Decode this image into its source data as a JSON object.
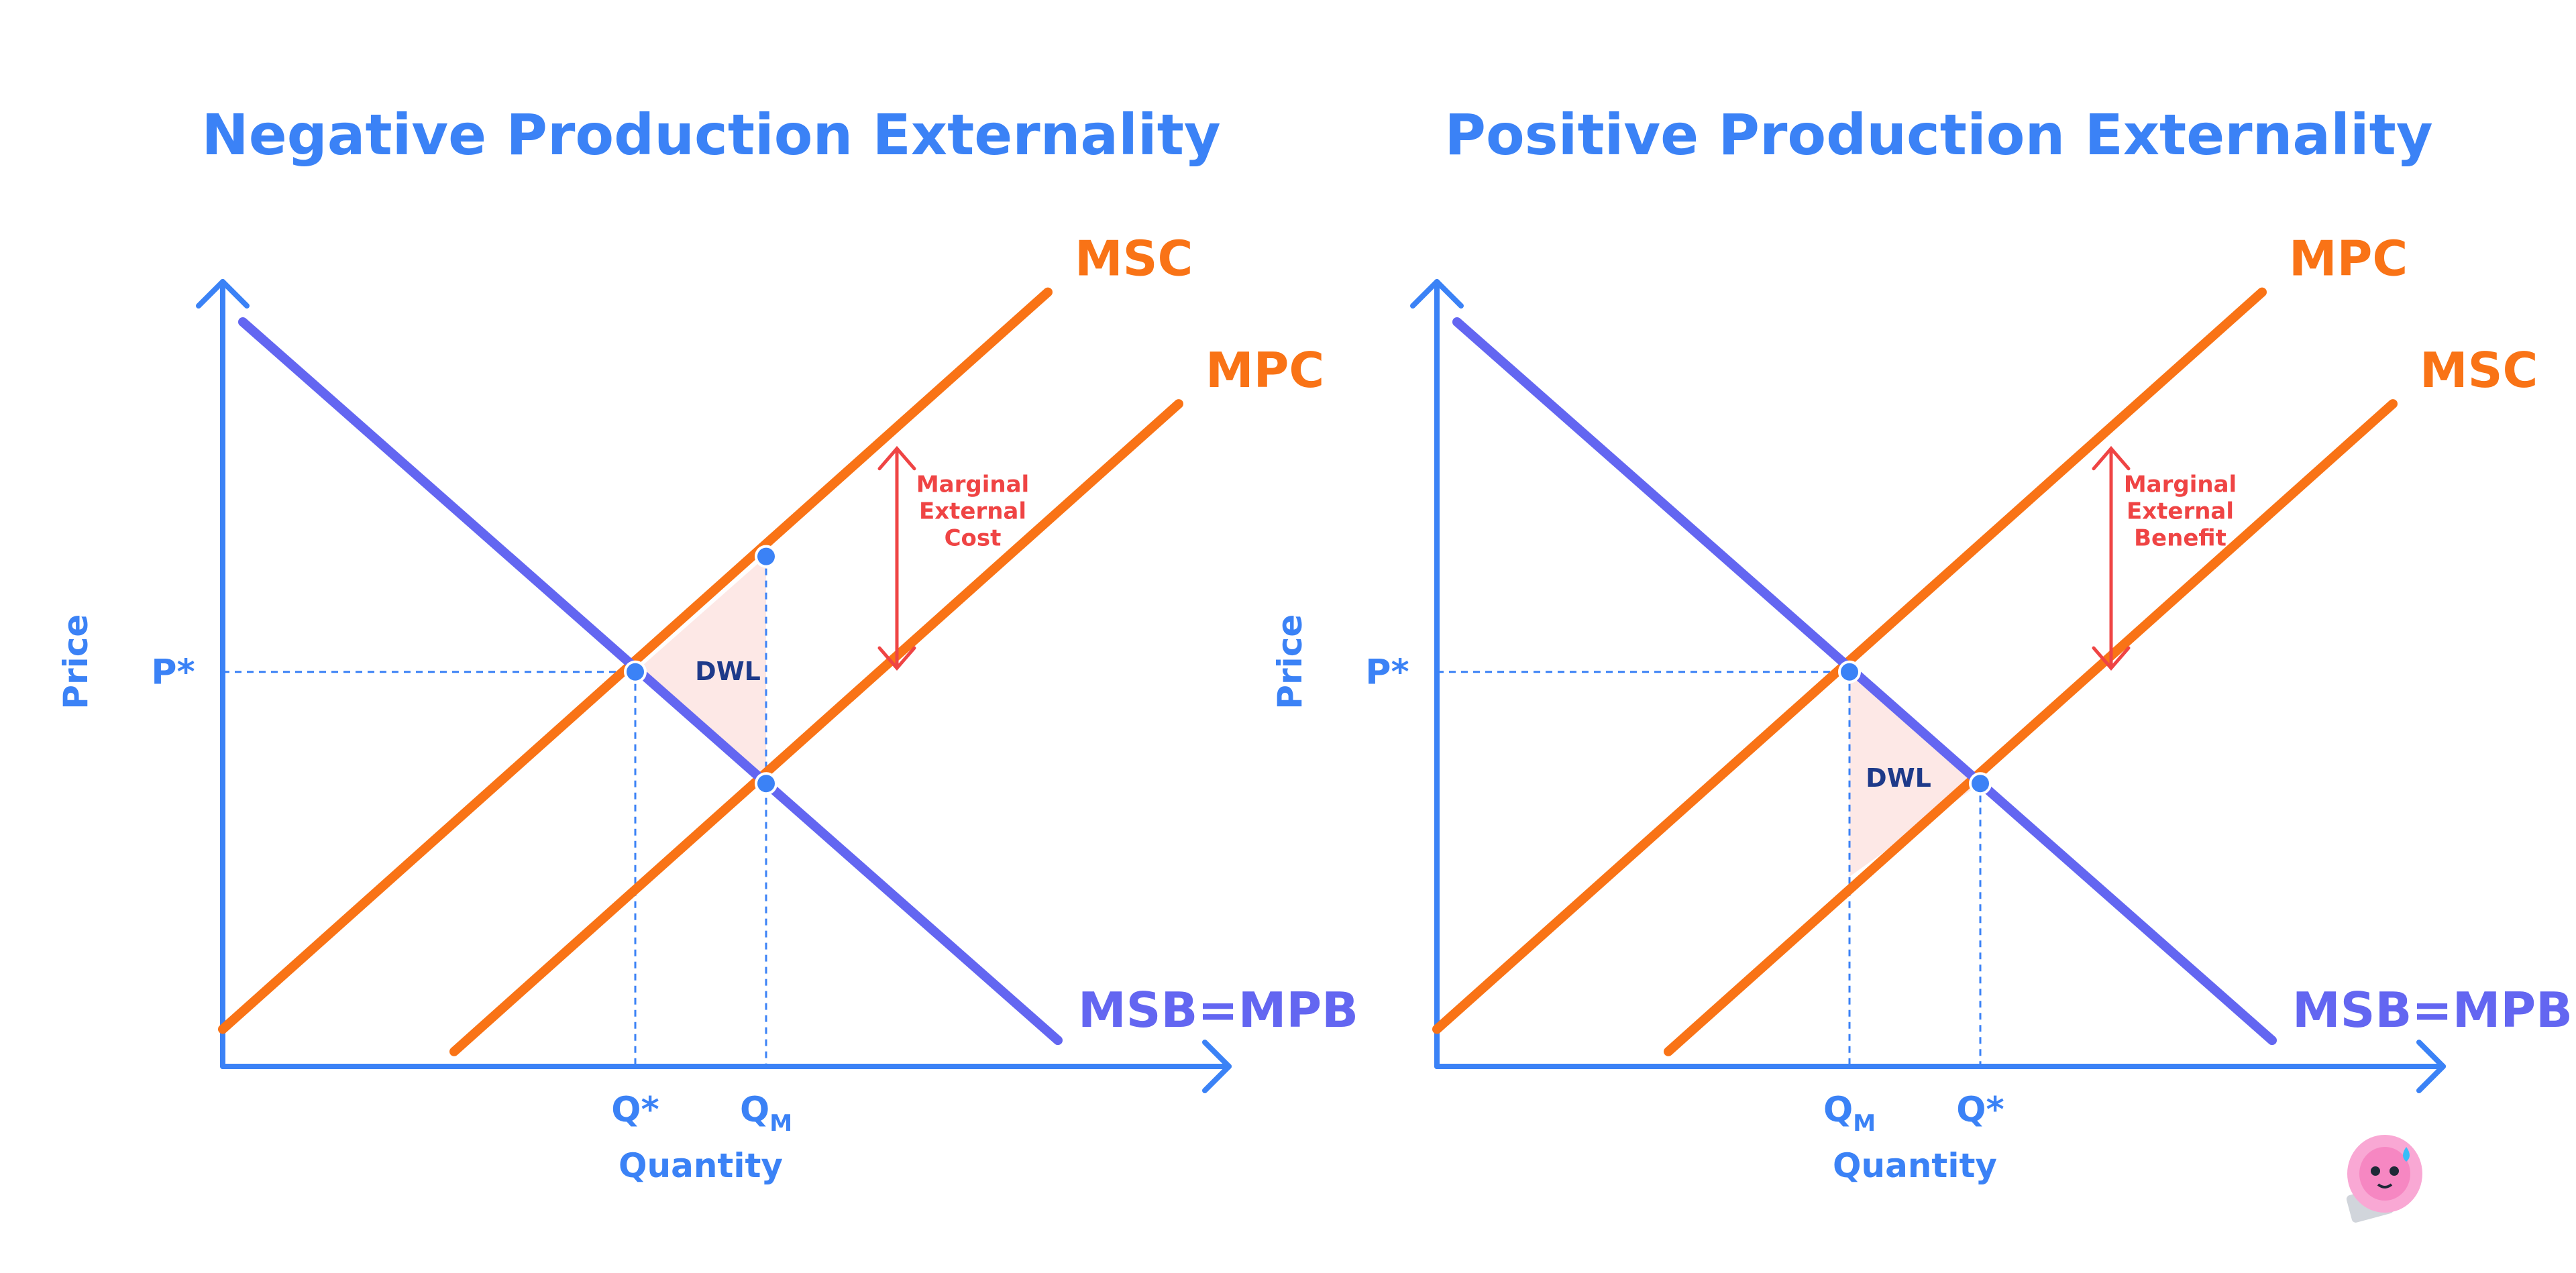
{
  "colors": {
    "axis": "#3b82f6",
    "title": "#3b82f6",
    "supply": "#f97316",
    "demand": "#6366f1",
    "arrow": "#ef4444",
    "dwl_fill": "#fde8e6",
    "dwl_text": "#1e3a8a",
    "guide": "#3b82f6",
    "point": "#3b82f6"
  },
  "mascot_icon": "pink-blob-mascot-icon",
  "chart_data": [
    {
      "type": "line",
      "title": "Negative Production Externality",
      "xlabel": "Quantity",
      "ylabel": "Price",
      "xlim": [
        0,
        10
      ],
      "ylim": [
        0,
        10
      ],
      "grid": false,
      "series": [
        {
          "name": "MSC",
          "color": "supply",
          "points": [
            [
              0,
              0.5
            ],
            [
              8.2,
              10.4
            ]
          ]
        },
        {
          "name": "MPC",
          "color": "supply",
          "points": [
            [
              2.3,
              0.2
            ],
            [
              9.5,
              8.9
            ]
          ]
        },
        {
          "name": "MSB=MPB",
          "color": "demand",
          "points": [
            [
              0.2,
              10.0
            ],
            [
              8.3,
              0.35
            ]
          ]
        }
      ],
      "points": [
        {
          "name": "efficient",
          "x": 4.1,
          "y": 5.3
        },
        {
          "name": "market",
          "x": 5.4,
          "y": 3.8
        },
        {
          "name": "msc-at-qm",
          "x": 5.4,
          "y": 6.85
        }
      ],
      "dwl": {
        "label": "DWL",
        "vertices": [
          [
            4.1,
            5.3
          ],
          [
            5.4,
            6.85
          ],
          [
            5.4,
            3.8
          ]
        ]
      },
      "guides": {
        "p_star": {
          "label": "P*",
          "y": 5.3,
          "x_to": 4.1
        },
        "q_ticks": [
          {
            "label": "Q*",
            "x": 4.1,
            "y_to": 5.3
          },
          {
            "label": "Q",
            "sub": "M",
            "x": 5.4,
            "y_to": 6.85
          }
        ]
      },
      "arrow": {
        "label_lines": [
          "Marginal",
          "External",
          "Cost"
        ],
        "x": 6.7,
        "y_from": 8.3,
        "y_to": 5.35
      }
    },
    {
      "type": "line",
      "title": "Positive Production Externality",
      "xlabel": "Quantity",
      "ylabel": "Price",
      "xlim": [
        0,
        10
      ],
      "ylim": [
        0,
        10
      ],
      "grid": false,
      "series": [
        {
          "name": "MPC",
          "color": "supply",
          "points": [
            [
              0,
              0.5
            ],
            [
              8.2,
              10.4
            ]
          ]
        },
        {
          "name": "MSC",
          "color": "supply",
          "points": [
            [
              2.3,
              0.2
            ],
            [
              9.5,
              8.9
            ]
          ]
        },
        {
          "name": "MSB=MPB",
          "color": "demand",
          "points": [
            [
              0.2,
              10.0
            ],
            [
              8.3,
              0.35
            ]
          ]
        }
      ],
      "points": [
        {
          "name": "market",
          "x": 4.1,
          "y": 5.3
        },
        {
          "name": "efficient",
          "x": 5.4,
          "y": 3.8
        }
      ],
      "dwl": {
        "label": "DWL",
        "vertices": [
          [
            4.1,
            5.3
          ],
          [
            5.4,
            3.8
          ],
          [
            4.1,
            2.55
          ]
        ]
      },
      "guides": {
        "p_star": {
          "label": "P*",
          "y": 5.3,
          "x_to": 4.1
        },
        "q_ticks": [
          {
            "label": "Q",
            "sub": "M",
            "x": 4.1,
            "y_to": 5.3
          },
          {
            "label": "Q*",
            "x": 5.4,
            "y_to": 3.8
          }
        ]
      },
      "arrow": {
        "label_lines": [
          "Marginal",
          "External",
          "Benefit"
        ],
        "x": 6.7,
        "y_from": 8.3,
        "y_to": 5.35
      }
    }
  ]
}
